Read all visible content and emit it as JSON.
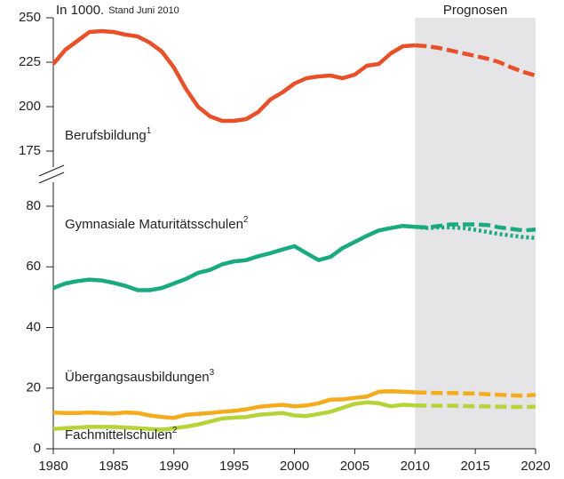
{
  "chart_data": [
    {
      "type": "line",
      "title": "In 1000.",
      "subtitle": "Stand Juni 2010",
      "annotation": "Prognosen",
      "shade": [
        2010,
        2020
      ],
      "xlim": [
        1980,
        2020
      ],
      "ylim": [
        175,
        250
      ],
      "yticks": [
        175,
        200,
        225,
        250
      ],
      "x": [
        1980,
        1981,
        1982,
        1983,
        1984,
        1985,
        1986,
        1987,
        1988,
        1989,
        1990,
        1991,
        1992,
        1993,
        1994,
        1995,
        1996,
        1997,
        1998,
        1999,
        2000,
        2001,
        2002,
        2003,
        2004,
        2005,
        2006,
        2007,
        2008,
        2009,
        2010,
        2011,
        2012,
        2013,
        2014,
        2015,
        2016,
        2017,
        2018,
        2019,
        2020
      ],
      "series": [
        {
          "name": "Berufsbildung",
          "note": "1",
          "color": "#e8502a",
          "style": "solid",
          "values": [
            224,
            232,
            237,
            242,
            242.5,
            242,
            240.5,
            239.5,
            236,
            231,
            222,
            210,
            200,
            194.5,
            192,
            192,
            193,
            197,
            204,
            208,
            213,
            216,
            217,
            217.5,
            216,
            218,
            223,
            224,
            230,
            234,
            234.5,
            null,
            null,
            null,
            null,
            null,
            null,
            null,
            null,
            null,
            null
          ]
        },
        {
          "color": "#e8502a",
          "style": "dashed",
          "values": [
            null,
            null,
            null,
            null,
            null,
            null,
            null,
            null,
            null,
            null,
            null,
            null,
            null,
            null,
            null,
            null,
            null,
            null,
            null,
            null,
            null,
            null,
            null,
            null,
            null,
            null,
            null,
            null,
            null,
            null,
            234.5,
            234,
            233,
            231.5,
            230,
            228.5,
            227,
            225,
            222,
            219.5,
            217.5
          ]
        }
      ]
    },
    {
      "type": "line",
      "xlim": [
        1980,
        2020
      ],
      "ylim": [
        0,
        80
      ],
      "yticks": [
        0,
        20,
        40,
        60,
        80
      ],
      "xticks": [
        1980,
        1985,
        1990,
        1995,
        2000,
        2005,
        2010,
        2015,
        2020
      ],
      "x": [
        1980,
        1981,
        1982,
        1983,
        1984,
        1985,
        1986,
        1987,
        1988,
        1989,
        1990,
        1991,
        1992,
        1993,
        1994,
        1995,
        1996,
        1997,
        1998,
        1999,
        2000,
        2001,
        2002,
        2003,
        2004,
        2005,
        2006,
        2007,
        2008,
        2009,
        2010,
        2011,
        2012,
        2013,
        2014,
        2015,
        2016,
        2017,
        2018,
        2019,
        2020
      ],
      "series": [
        {
          "name": "Gymnasiale Maturitätsschulen",
          "note": "2",
          "color": "#1aaa80",
          "style": "solid",
          "values": [
            53,
            54.5,
            55.3,
            55.8,
            55.5,
            54.7,
            53.7,
            52.3,
            52.3,
            53,
            54.5,
            56,
            58,
            59,
            60.8,
            61.8,
            62.2,
            63.5,
            64.5,
            65.7,
            66.8,
            64.5,
            62.2,
            63.3,
            66.2,
            68.2,
            70.2,
            72,
            72.8,
            73.5,
            73.2,
            null,
            null,
            null,
            null,
            null,
            null,
            null,
            null,
            null,
            null
          ]
        },
        {
          "color": "#1aaa80",
          "style": "dashed",
          "values": [
            null,
            null,
            null,
            null,
            null,
            null,
            null,
            null,
            null,
            null,
            null,
            null,
            null,
            null,
            null,
            null,
            null,
            null,
            null,
            null,
            null,
            null,
            null,
            null,
            null,
            null,
            null,
            null,
            null,
            null,
            73.2,
            73,
            73.5,
            74,
            74,
            74,
            73.8,
            73,
            72.5,
            72,
            72.3
          ]
        },
        {
          "color": "#1aaa80",
          "style": "dotted",
          "values": [
            null,
            null,
            null,
            null,
            null,
            null,
            null,
            null,
            null,
            null,
            null,
            null,
            null,
            null,
            null,
            null,
            null,
            null,
            null,
            null,
            null,
            null,
            null,
            null,
            null,
            null,
            null,
            null,
            null,
            null,
            73.2,
            72.8,
            73,
            73,
            72.8,
            72.2,
            71.5,
            70.8,
            70.3,
            69.8,
            69.5
          ]
        },
        {
          "name": "Übergangsausbildungen",
          "note": "3",
          "color": "#f5ac1c",
          "style": "solid",
          "values": [
            12,
            11.8,
            11.8,
            12,
            11.8,
            11.6,
            12,
            11.8,
            11,
            10.5,
            10.2,
            11.2,
            11.5,
            11.8,
            12.2,
            12.5,
            13,
            13.8,
            14.2,
            14.5,
            14,
            14.3,
            15,
            16.2,
            16.3,
            16.8,
            17.2,
            18.8,
            19,
            18.8,
            18.6,
            null,
            null,
            null,
            null,
            null,
            null,
            null,
            null,
            null,
            null
          ]
        },
        {
          "color": "#f5ac1c",
          "style": "dashed",
          "values": [
            null,
            null,
            null,
            null,
            null,
            null,
            null,
            null,
            null,
            null,
            null,
            null,
            null,
            null,
            null,
            null,
            null,
            null,
            null,
            null,
            null,
            null,
            null,
            null,
            null,
            null,
            null,
            null,
            null,
            null,
            18.6,
            18.5,
            18.4,
            18.4,
            18.3,
            18.2,
            18,
            17.8,
            17.6,
            17.5,
            17.8
          ]
        },
        {
          "name": "Fachmittelschulen",
          "note": "2",
          "color": "#b6d43a",
          "style": "solid",
          "values": [
            6.5,
            6.8,
            7,
            7.2,
            7.2,
            7.2,
            7,
            6.8,
            6.5,
            6.3,
            6.8,
            7.3,
            8,
            9,
            10,
            10.3,
            10.5,
            11.2,
            11.5,
            11.8,
            11,
            10.8,
            11.5,
            12.2,
            13.5,
            14.8,
            15.3,
            15,
            14,
            14.5,
            14.3,
            null,
            null,
            null,
            null,
            null,
            null,
            null,
            null,
            null,
            null
          ]
        },
        {
          "color": "#b6d43a",
          "style": "dashed",
          "values": [
            null,
            null,
            null,
            null,
            null,
            null,
            null,
            null,
            null,
            null,
            null,
            null,
            null,
            null,
            null,
            null,
            null,
            null,
            null,
            null,
            null,
            null,
            null,
            null,
            null,
            null,
            null,
            null,
            null,
            null,
            14.3,
            14.2,
            14.2,
            14.2,
            14.1,
            14,
            14,
            13.9,
            13.8,
            13.8,
            13.9
          ]
        }
      ]
    }
  ]
}
